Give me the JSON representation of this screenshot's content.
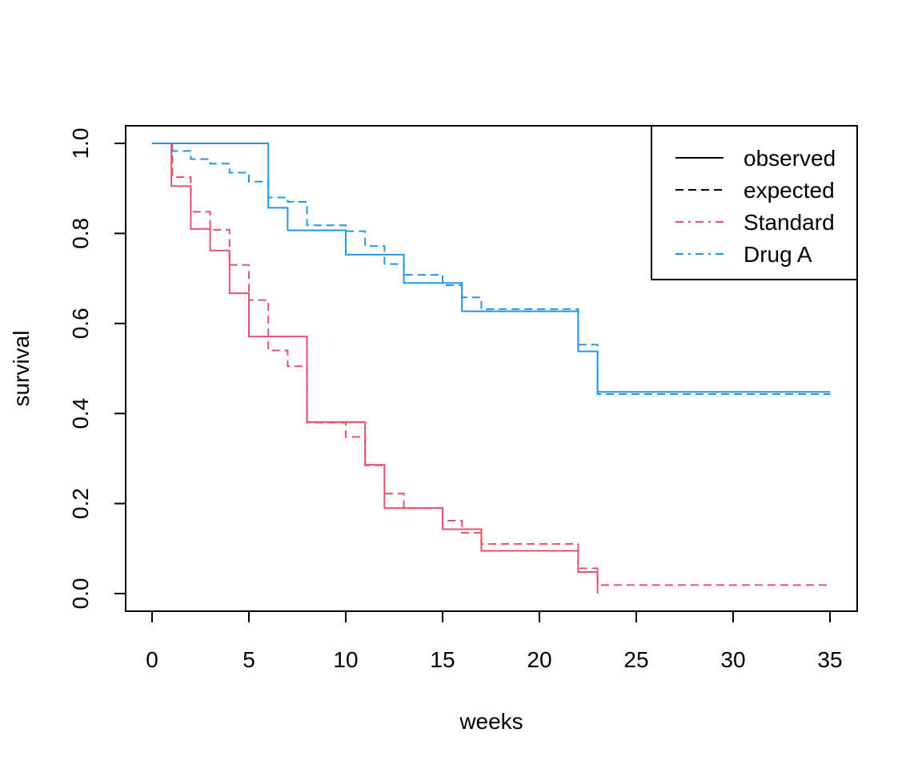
{
  "chart_data": {
    "type": "line",
    "step": true,
    "xlabel": "weeks",
    "ylabel": "survival",
    "xlim": [
      0,
      35
    ],
    "ylim": [
      0,
      1
    ],
    "x_ticks": [
      0,
      5,
      10,
      15,
      20,
      25,
      30,
      35
    ],
    "y_ticks": [
      0,
      0.2,
      0.4,
      0.6,
      0.8,
      1
    ],
    "x_tick_labels": [
      "0",
      "5",
      "10",
      "15",
      "20",
      "25",
      "30",
      "35"
    ],
    "y_tick_labels": [
      "0.0",
      "0.2",
      "0.4",
      "0.6",
      "0.8",
      "1.0"
    ],
    "grid": false,
    "legend_placement": "top-right",
    "legend": [
      {
        "label": "observed",
        "style": "solid",
        "color": "#000000"
      },
      {
        "label": "expected",
        "style": "dashed",
        "color": "#000000"
      },
      {
        "label": "Standard",
        "style": "dashdot",
        "color": "#DF536B"
      },
      {
        "label": "Drug A",
        "style": "dashdot",
        "color": "#2297E6"
      }
    ],
    "series": [
      {
        "group": "Standard",
        "kind": "observed",
        "color": "#DF536B",
        "x": [
          0,
          1,
          2,
          3,
          4,
          5,
          8,
          11,
          12,
          15,
          17,
          22,
          23
        ],
        "y": [
          1.0,
          0.905,
          0.81,
          0.762,
          0.667,
          0.571,
          0.381,
          0.286,
          0.19,
          0.143,
          0.095,
          0.048,
          0.0
        ],
        "x_end": 23
      },
      {
        "group": "Standard",
        "kind": "expected",
        "color": "#DF536B",
        "x": [
          1,
          1.05,
          2,
          3,
          4,
          5,
          6,
          7,
          8,
          10,
          11,
          12,
          13,
          15,
          16,
          17,
          22,
          23
        ],
        "y": [
          1.0,
          0.925,
          0.848,
          0.808,
          0.73,
          0.652,
          0.54,
          0.505,
          0.38,
          0.348,
          0.285,
          0.222,
          0.19,
          0.162,
          0.135,
          0.11,
          0.056,
          0.019
        ],
        "x_end": 35
      },
      {
        "group": "Drug A",
        "kind": "observed",
        "color": "#2297E6",
        "x": [
          0,
          6,
          7,
          10,
          13,
          16,
          22,
          23
        ],
        "y": [
          1.0,
          0.857,
          0.807,
          0.753,
          0.69,
          0.627,
          0.538,
          0.448
        ],
        "x_end": 35
      },
      {
        "group": "Drug A",
        "kind": "expected",
        "color": "#2297E6",
        "x": [
          0,
          1,
          2,
          3,
          4,
          5,
          6,
          7,
          8,
          10,
          11,
          12,
          13,
          15,
          16,
          17,
          22,
          23
        ],
        "y": [
          1.0,
          0.983,
          0.965,
          0.955,
          0.935,
          0.915,
          0.88,
          0.87,
          0.818,
          0.805,
          0.772,
          0.732,
          0.708,
          0.685,
          0.658,
          0.632,
          0.553,
          0.443
        ],
        "x_end": 35
      }
    ]
  }
}
